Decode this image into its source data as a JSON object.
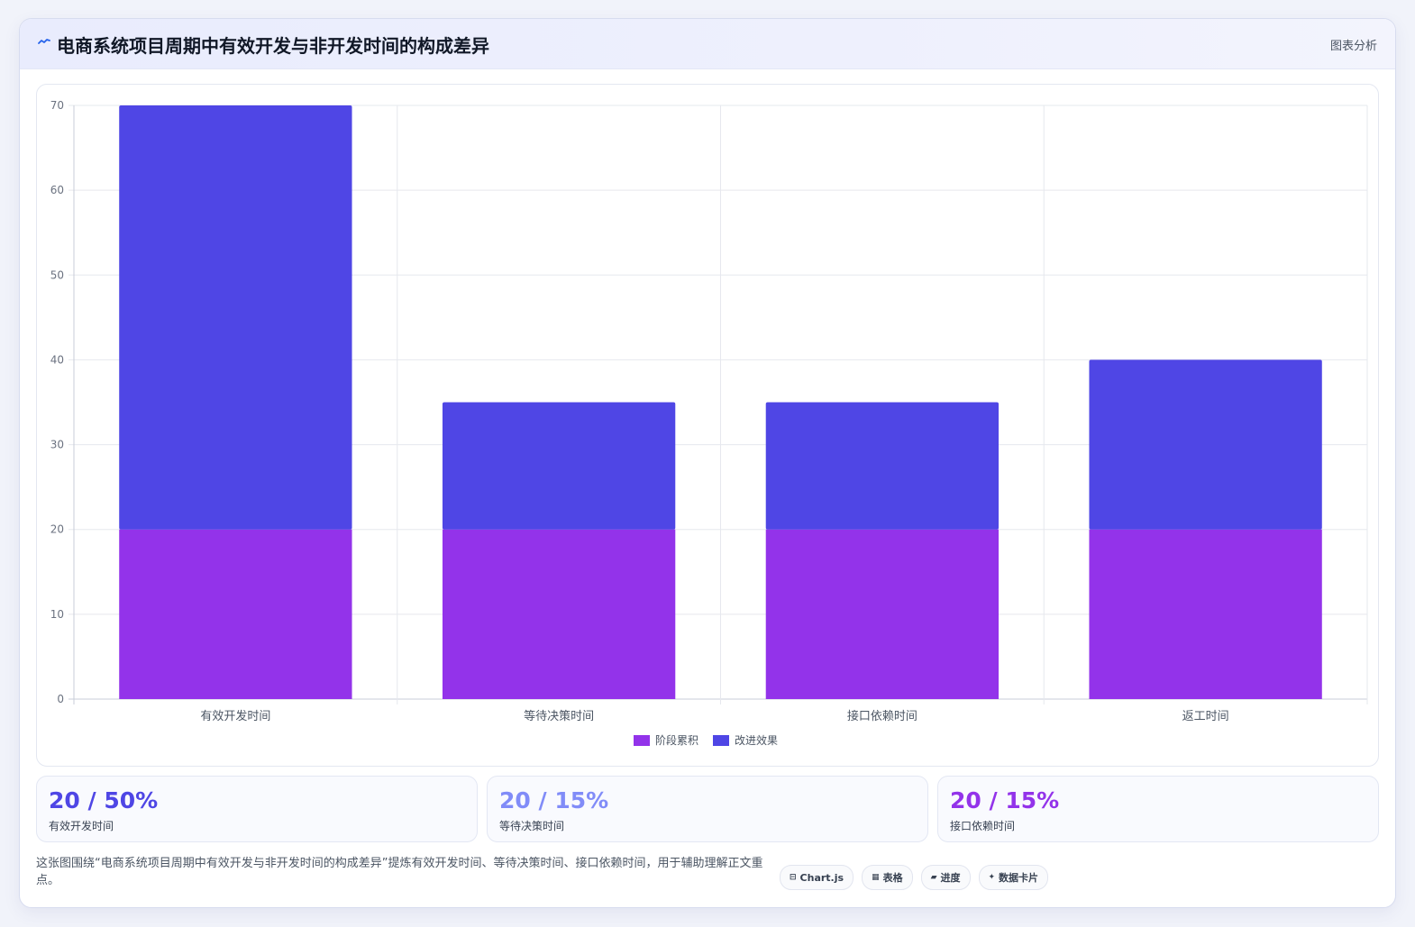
{
  "header": {
    "icon": "trend-line-icon",
    "title": "电商系统项目周期中有效开发与非开发时间的构成差异",
    "tag": "图表分析"
  },
  "chart_data": {
    "type": "bar",
    "stacked": true,
    "categories": [
      "有效开发时间",
      "等待决策时间",
      "接口依赖时间",
      "返工时间"
    ],
    "series": [
      {
        "name": "阶段累积",
        "color": "#9333ea",
        "values": [
          20,
          20,
          20,
          20
        ]
      },
      {
        "name": "改进效果",
        "color": "#4f46e5",
        "values": [
          50,
          15,
          15,
          20
        ]
      }
    ],
    "ylim": [
      0,
      70
    ],
    "yticks": [
      0,
      10,
      20,
      30,
      40,
      50,
      60,
      70
    ],
    "grid": true,
    "legend": "bottom"
  },
  "stats": [
    {
      "value": "20 / 50%",
      "label": "有效开发时间",
      "color": "#4f46e5"
    },
    {
      "value": "20 / 15%",
      "label": "等待决策时间",
      "color": "#818cf8"
    },
    {
      "value": "20 / 15%",
      "label": "接口依赖时间",
      "color": "#9333ea"
    }
  ],
  "description": "这张图围绕“电商系统项目周期中有效开发与非开发时间的构成差异”提炼有效开发时间、等待决策时间、接口依赖时间，用于辅助理解正文重点。",
  "pills": [
    {
      "icon": "chart-icon",
      "glyph": "⊟",
      "label": "Chart.js"
    },
    {
      "icon": "table-icon",
      "glyph": "▦",
      "label": "表格"
    },
    {
      "icon": "progress-icon",
      "glyph": "▰",
      "label": "进度"
    },
    {
      "icon": "sparkle-icon",
      "glyph": "✦",
      "label": "数据卡片"
    }
  ]
}
